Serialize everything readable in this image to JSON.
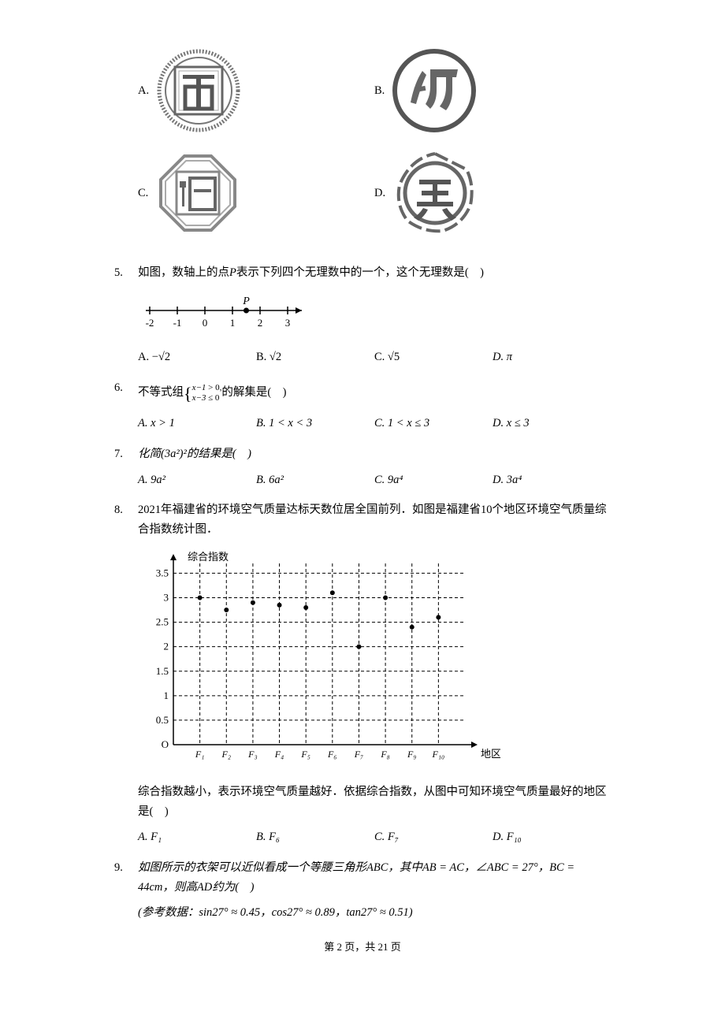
{
  "q4": {
    "options": {
      "A": {
        "label": "A.",
        "icon": "ji-seal"
      },
      "B": {
        "label": "B.",
        "icon": "xiang-circle"
      },
      "C": {
        "label": "C.",
        "icon": "he-octagon"
      },
      "D": {
        "label": "D.",
        "icon": "le-ring"
      }
    }
  },
  "q5": {
    "num": "5.",
    "text_pre": "如图，数轴上的点",
    "text_var": "P",
    "text_post": "表示下列四个无理数中的一个，这个无理数是(　)",
    "numline": {
      "ticks": [
        -2,
        -1,
        0,
        1,
        2,
        3
      ],
      "p_label": "P",
      "p_x": 1.5,
      "stroke": "#000000"
    },
    "options": {
      "A": "A. −√2",
      "B": "B. √2",
      "C": "C. √5",
      "D": "D. π"
    }
  },
  "q6": {
    "num": "6.",
    "text_pre": "不等式组",
    "brace_top_lhs": "x−1",
    "brace_top_rhs": "> 0,",
    "brace_bot_lhs": "x−3",
    "brace_bot_rhs": "≤ 0",
    "text_post": "的解集是(　)",
    "options": {
      "A": "A. x > 1",
      "B": "B. 1 < x < 3",
      "C": "C. 1 < x ≤ 3",
      "D": "D. x ≤ 3"
    }
  },
  "q7": {
    "num": "7.",
    "text": "化简(3a²)²的结果是(　)",
    "options": {
      "A": "A. 9a²",
      "B": "B. 6a²",
      "C": "C. 9a⁴",
      "D": "D. 3a⁴"
    }
  },
  "q8": {
    "num": "8.",
    "text1": "2021年福建省的环境空气质量达标天数位居全国前列．如图是福建省10个地区环境空气质量综合指数统计图．",
    "chart": {
      "type": "scatter",
      "ylabel": "综合指数",
      "xlabel": "地区",
      "yticks": [
        0,
        0.5,
        1,
        1.5,
        2,
        2.5,
        3,
        3.5
      ],
      "ytick_labels": [
        "O",
        "0.5",
        "1",
        "1.5",
        "2",
        "2.5",
        "3",
        "3.5"
      ],
      "ylim": [
        0,
        3.7
      ],
      "xlim": [
        0,
        11
      ],
      "categories": [
        "F₁",
        "F₂",
        "F₃",
        "F₄",
        "F₅",
        "F₆",
        "F₇",
        "F₈",
        "F₉",
        "F₁₀"
      ],
      "values": [
        3.0,
        2.75,
        2.9,
        2.85,
        2.8,
        3.1,
        2.0,
        3.0,
        2.4,
        2.6
      ],
      "marker_color": "#000000",
      "marker_radius": 3,
      "axis_color": "#000000",
      "grid_color": "#000000",
      "grid_dash": "4,3",
      "bg_color": "#ffffff",
      "label_fontsize": 13
    },
    "text2": "综合指数越小，表示环境空气质量越好．依据综合指数，从图中可知环境空气质量最好的地区是(　)",
    "options": {
      "A": "A. F₁",
      "B": "B. F₆",
      "C": "C. F₇",
      "D": "D. F₁₀"
    }
  },
  "q9": {
    "num": "9.",
    "text1": "如图所示的衣架可以近似看成一个等腰三角形ABC，其中AB = AC，∠ABC = 27°，BC = 44cm，则高AD约为(　)",
    "text2": "(参考数据：sin27° ≈ 0.45，cos27° ≈ 0.89，tan27° ≈ 0.51)"
  },
  "footer": {
    "text": "第 2 页，共 21 页"
  },
  "colors": {
    "text": "#000000",
    "icon_gray": "#888888",
    "icon_dark": "#333333",
    "bg": "#ffffff"
  }
}
